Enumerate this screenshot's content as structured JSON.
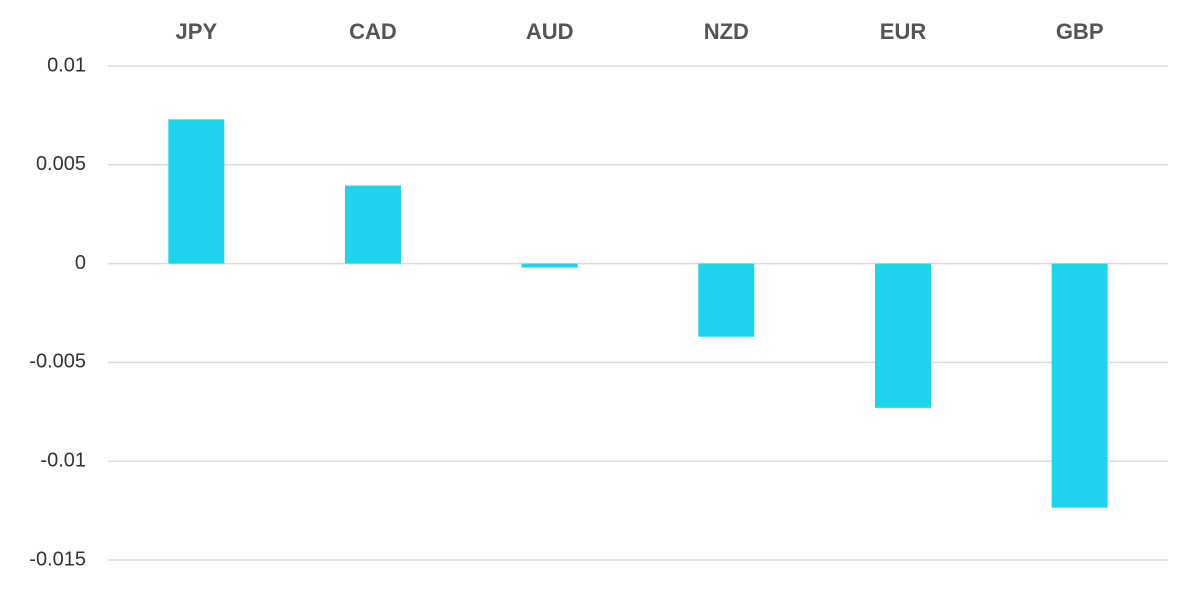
{
  "chart_data": {
    "type": "bar",
    "categories": [
      "JPY",
      "CAD",
      "AUD",
      "NZD",
      "EUR",
      "GBP"
    ],
    "values": [
      0.0073,
      0.00395,
      -0.0002,
      -0.0037,
      -0.0073,
      -0.01235
    ],
    "color": "#1fd3ee",
    "ylim": [
      -0.015,
      0.01
    ],
    "yticks": [
      0.01,
      0.005,
      0,
      -0.005,
      -0.01,
      -0.015
    ],
    "grid": true
  }
}
